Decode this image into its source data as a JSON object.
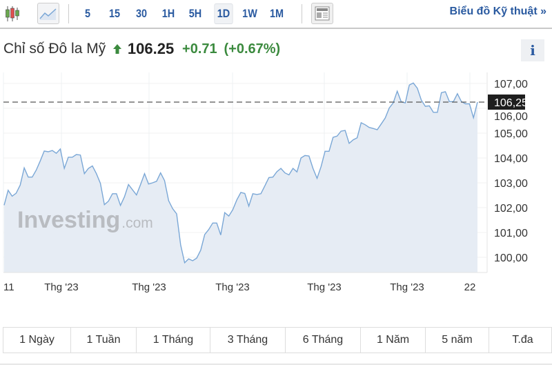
{
  "toolbar": {
    "intervals": [
      "5",
      "15",
      "30",
      "1H",
      "5H",
      "1D",
      "1W",
      "1M"
    ],
    "active_interval": "1D",
    "technical_chart_label": "Biểu đồ Kỹ thuật »",
    "icons": [
      "candlestick-icon",
      "line-chart-icon",
      "news-icon"
    ]
  },
  "header": {
    "name": "Chỉ số Đô la Mỹ",
    "price": "106.25",
    "change": "+0.71",
    "change_pct": "(+0.67%)",
    "direction": "up",
    "info_label": "i"
  },
  "colors": {
    "up": "#3b8a3e",
    "line": "#7aa7d6",
    "fill": "#e6ecf4",
    "link": "#2a5aa0"
  },
  "chart_data": {
    "type": "area",
    "watermark": "Investing.com",
    "y_ticks": [
      "100,00",
      "101,00",
      "102,00",
      "103,00",
      "104,00",
      "105,00",
      "106,00",
      "107,00"
    ],
    "ylim": [
      99.5,
      107.3
    ],
    "x_ticks": [
      "11",
      "Thg '23",
      "Thg '23",
      "Thg '23",
      "Thg '23",
      "Thg '23",
      "22"
    ],
    "last_value_label": "106,25",
    "last_value": 106.25,
    "grid": true,
    "values": [
      102.1,
      102.7,
      102.46,
      102.58,
      102.91,
      103.6,
      103.23,
      103.23,
      103.51,
      103.88,
      104.28,
      104.25,
      104.3,
      104.19,
      104.36,
      103.58,
      104.03,
      104.03,
      104.14,
      104.12,
      103.37,
      103.58,
      103.68,
      103.37,
      102.98,
      102.12,
      102.26,
      102.56,
      102.56,
      102.09,
      102.44,
      102.93,
      102.72,
      102.51,
      102.93,
      103.37,
      102.95,
      103.0,
      103.06,
      103.4,
      103.09,
      102.28,
      101.96,
      101.75,
      100.5,
      99.78,
      99.94,
      99.86,
      99.97,
      100.29,
      100.92,
      101.12,
      101.38,
      101.38,
      100.9,
      101.8,
      101.66,
      101.92,
      102.31,
      102.61,
      102.57,
      102.06,
      102.56,
      102.53,
      102.56,
      102.88,
      103.21,
      103.23,
      103.45,
      103.58,
      103.4,
      103.32,
      103.58,
      103.44,
      104.0,
      104.1,
      104.08,
      103.58,
      103.18,
      103.65,
      104.27,
      104.27,
      104.83,
      104.88,
      105.08,
      105.11,
      104.59,
      104.73,
      104.81,
      105.42,
      105.34,
      105.23,
      105.19,
      105.14,
      105.37,
      105.61,
      106.01,
      106.22,
      106.69,
      106.26,
      106.22,
      106.94,
      107.02,
      106.81,
      106.33,
      106.08,
      106.1,
      105.84,
      105.84,
      106.63,
      106.67,
      106.27,
      106.27,
      106.59,
      106.27,
      106.18,
      106.18,
      105.62,
      106.25
    ]
  },
  "ranges": [
    "1 Ngày",
    "1 Tuần",
    "1 Tháng",
    "3 Tháng",
    "6 Tháng",
    "1 Năm",
    "5 năm",
    "T.đa"
  ]
}
